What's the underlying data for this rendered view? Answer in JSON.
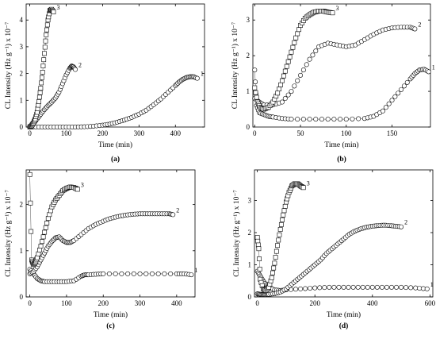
{
  "chart_data": [
    {
      "type": "scatter",
      "panel_label": "(a)",
      "xlabel": "Time (min)",
      "ylabel": "CL Intensity (Hz g⁻¹) x 10⁻⁷",
      "xlim": [
        -10,
        480
      ],
      "ylim": [
        0,
        4.6
      ],
      "xticks": [
        0,
        100,
        200,
        300,
        400
      ],
      "yticks": [
        0,
        1,
        2,
        3,
        4
      ],
      "series": [
        {
          "name": "1",
          "marker": "circle",
          "x": [
            0,
            25,
            50,
            75,
            100,
            125,
            150,
            175,
            200,
            220,
            240,
            260,
            280,
            300,
            320,
            340,
            360,
            380,
            400,
            410,
            420,
            430,
            440,
            450,
            460
          ],
          "y": [
            0,
            0,
            0,
            0,
            0,
            0,
            0.01,
            0.03,
            0.07,
            0.11,
            0.18,
            0.26,
            0.36,
            0.48,
            0.63,
            0.83,
            1.05,
            1.3,
            1.55,
            1.68,
            1.78,
            1.85,
            1.88,
            1.88,
            1.82
          ]
        },
        {
          "name": "2",
          "marker": "circle",
          "x": [
            0,
            10,
            20,
            30,
            40,
            50,
            60,
            70,
            80,
            90,
            100,
            110,
            115,
            120,
            125
          ],
          "y": [
            0,
            0.12,
            0.3,
            0.48,
            0.65,
            0.8,
            0.93,
            1.08,
            1.3,
            1.62,
            1.95,
            2.2,
            2.28,
            2.25,
            2.15
          ]
        },
        {
          "name": "3",
          "marker": "square",
          "x": [
            0,
            5,
            10,
            15,
            20,
            25,
            30,
            35,
            40,
            45,
            50,
            55,
            60,
            65
          ],
          "y": [
            0,
            0.05,
            0.15,
            0.3,
            0.55,
            0.95,
            1.45,
            2.05,
            2.75,
            3.45,
            4.0,
            4.35,
            4.4,
            4.3
          ]
        }
      ]
    },
    {
      "type": "scatter",
      "panel_label": "(b)",
      "xlabel": "Time (min)",
      "ylabel": "CL Intensity (Hz g⁻¹) x 10⁻⁷",
      "xlim": [
        -2,
        192
      ],
      "ylim": [
        0,
        3.45
      ],
      "xticks": [
        0,
        50,
        100,
        150
      ],
      "yticks": [
        0,
        1,
        2,
        3
      ],
      "series": [
        {
          "name": "1",
          "marker": "circle",
          "x": [
            0,
            2,
            5,
            10,
            15,
            20,
            30,
            40,
            60,
            80,
            100,
            120,
            130,
            140,
            150,
            160,
            170,
            175,
            180,
            185,
            190
          ],
          "y": [
            1.6,
            0.6,
            0.4,
            0.35,
            0.3,
            0.28,
            0.24,
            0.22,
            0.22,
            0.22,
            0.22,
            0.24,
            0.3,
            0.45,
            0.75,
            1.05,
            1.35,
            1.5,
            1.6,
            1.62,
            1.55
          ]
        },
        {
          "name": "2",
          "marker": "circle",
          "x": [
            0,
            5,
            10,
            20,
            30,
            40,
            50,
            60,
            70,
            80,
            90,
            100,
            110,
            120,
            130,
            140,
            150,
            160,
            170,
            175
          ],
          "y": [
            0.8,
            0.7,
            0.62,
            0.62,
            0.7,
            1.0,
            1.45,
            1.9,
            2.25,
            2.35,
            2.3,
            2.25,
            2.3,
            2.45,
            2.6,
            2.72,
            2.78,
            2.8,
            2.8,
            2.75
          ]
        },
        {
          "name": "3",
          "marker": "square",
          "x": [
            0,
            3,
            6,
            10,
            15,
            20,
            25,
            30,
            35,
            40,
            45,
            50,
            55,
            60,
            65,
            70,
            75,
            80,
            85
          ],
          "y": [
            1.1,
            0.7,
            0.55,
            0.5,
            0.55,
            0.7,
            0.95,
            1.3,
            1.7,
            2.1,
            2.5,
            2.85,
            3.05,
            3.15,
            3.22,
            3.25,
            3.25,
            3.22,
            3.2
          ]
        }
      ]
    },
    {
      "type": "scatter",
      "panel_label": "(c)",
      "xlabel": "Time (min)",
      "ylabel": "CL Intensity (Hz g⁻¹) x 10⁻⁷",
      "xlim": [
        -10,
        450
      ],
      "ylim": [
        0,
        2.75
      ],
      "xticks": [
        0,
        100,
        200,
        300,
        400
      ],
      "yticks": [
        0,
        1,
        2
      ],
      "series": [
        {
          "name": "1",
          "marker": "circle",
          "x": [
            0,
            10,
            20,
            30,
            40,
            60,
            80,
            100,
            120,
            140,
            150,
            160,
            180,
            200,
            250,
            300,
            350,
            400,
            420,
            440
          ],
          "y": [
            0.6,
            0.5,
            0.4,
            0.35,
            0.33,
            0.33,
            0.33,
            0.33,
            0.35,
            0.45,
            0.48,
            0.48,
            0.49,
            0.5,
            0.5,
            0.5,
            0.5,
            0.5,
            0.5,
            0.48
          ]
        },
        {
          "name": "2",
          "marker": "circle",
          "x": [
            0,
            10,
            20,
            30,
            40,
            50,
            60,
            70,
            80,
            90,
            100,
            110,
            120,
            140,
            160,
            180,
            200,
            220,
            240,
            260,
            280,
            300,
            320,
            340,
            360,
            380,
            390
          ],
          "y": [
            0.5,
            0.55,
            0.65,
            0.8,
            0.95,
            1.1,
            1.2,
            1.28,
            1.3,
            1.22,
            1.18,
            1.18,
            1.22,
            1.35,
            1.48,
            1.57,
            1.64,
            1.7,
            1.74,
            1.77,
            1.79,
            1.8,
            1.8,
            1.8,
            1.8,
            1.8,
            1.78
          ]
        },
        {
          "name": "3",
          "marker": "square",
          "x": [
            0,
            5,
            10,
            15,
            20,
            30,
            40,
            50,
            60,
            70,
            80,
            90,
            100,
            110,
            120,
            130
          ],
          "y": [
            2.65,
            0.8,
            0.7,
            0.75,
            0.85,
            1.1,
            1.4,
            1.7,
            1.95,
            2.1,
            2.2,
            2.3,
            2.35,
            2.38,
            2.37,
            2.33
          ]
        }
      ]
    },
    {
      "type": "scatter",
      "panel_label": "(d)",
      "xlabel": "Time (min)",
      "ylabel": "CL Intensity (Hz g⁻¹) x 10⁻⁷",
      "xlim": [
        -10,
        610
      ],
      "ylim": [
        0,
        3.95
      ],
      "xticks": [
        0,
        200,
        400,
        600
      ],
      "yticks": [
        0,
        1,
        2,
        3
      ],
      "series": [
        {
          "name": "1",
          "marker": "circle",
          "x": [
            0,
            10,
            20,
            30,
            40,
            60,
            80,
            100,
            150,
            200,
            250,
            300,
            350,
            400,
            450,
            500,
            550,
            590
          ],
          "y": [
            0.8,
            0.65,
            0.5,
            0.38,
            0.3,
            0.22,
            0.2,
            0.22,
            0.25,
            0.28,
            0.3,
            0.3,
            0.3,
            0.3,
            0.3,
            0.3,
            0.28,
            0.25
          ]
        },
        {
          "name": "2",
          "marker": "circle",
          "x": [
            0,
            10,
            20,
            30,
            40,
            60,
            80,
            100,
            120,
            140,
            160,
            180,
            200,
            220,
            240,
            260,
            280,
            300,
            320,
            340,
            360,
            380,
            400,
            420,
            440,
            460,
            480,
            500
          ],
          "y": [
            0.1,
            0.08,
            0.07,
            0.07,
            0.08,
            0.1,
            0.15,
            0.25,
            0.4,
            0.55,
            0.7,
            0.85,
            1.0,
            1.15,
            1.35,
            1.5,
            1.65,
            1.8,
            1.95,
            2.05,
            2.12,
            2.17,
            2.2,
            2.22,
            2.23,
            2.22,
            2.2,
            2.18
          ]
        },
        {
          "name": "3",
          "marker": "square",
          "x": [
            0,
            5,
            10,
            20,
            30,
            40,
            50,
            60,
            70,
            80,
            90,
            100,
            110,
            120,
            130,
            140,
            150,
            160
          ],
          "y": [
            1.85,
            1.5,
            0.55,
            0.25,
            0.2,
            0.3,
            0.6,
            1.05,
            1.6,
            2.1,
            2.55,
            2.95,
            3.25,
            3.45,
            3.52,
            3.52,
            3.45,
            3.4
          ]
        }
      ]
    }
  ]
}
